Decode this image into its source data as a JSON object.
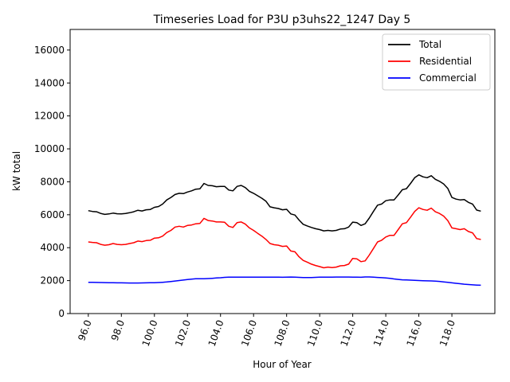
{
  "chart_data": {
    "type": "line",
    "title": "Timeseries Load for P3U p3uhs22_1247  Day 5",
    "xlabel": "Hour of Year",
    "ylabel": "kW total",
    "xlim": [
      94.9,
      120.6
    ],
    "ylim": [
      0,
      17250
    ],
    "x_ticks": [
      96.0,
      98.0,
      100.0,
      102.0,
      104.0,
      106.0,
      108.0,
      110.0,
      112.0,
      114.0,
      116.0,
      118.0
    ],
    "x_tick_labels": [
      "96.0",
      "98.0",
      "100.0",
      "102.0",
      "104.0",
      "106.0",
      "108.0",
      "110.0",
      "112.0",
      "114.0",
      "116.0",
      "118.0"
    ],
    "y_ticks": [
      0,
      2000,
      4000,
      6000,
      8000,
      10000,
      12000,
      14000,
      16000
    ],
    "y_tick_labels": [
      "0",
      "2000",
      "4000",
      "6000",
      "8000",
      "10000",
      "12000",
      "14000",
      "16000"
    ],
    "legend_position": "top-right",
    "grid": false,
    "x": [
      96.0,
      96.25,
      96.5,
      96.75,
      97.0,
      97.25,
      97.5,
      97.75,
      98.0,
      98.25,
      98.5,
      98.75,
      99.0,
      99.25,
      99.5,
      99.75,
      100.0,
      100.25,
      100.5,
      100.75,
      101.0,
      101.25,
      101.5,
      101.75,
      102.0,
      102.25,
      102.5,
      102.75,
      103.0,
      103.25,
      103.5,
      103.75,
      104.0,
      104.25,
      104.5,
      104.75,
      105.0,
      105.25,
      105.5,
      105.75,
      106.0,
      106.25,
      106.5,
      106.75,
      107.0,
      107.25,
      107.5,
      107.75,
      108.0,
      108.25,
      108.5,
      108.75,
      109.0,
      109.25,
      109.5,
      109.75,
      110.0,
      110.25,
      110.5,
      110.75,
      111.0,
      111.25,
      111.5,
      111.75,
      112.0,
      112.25,
      112.5,
      112.75,
      113.0,
      113.25,
      113.5,
      113.75,
      114.0,
      114.25,
      114.5,
      114.75,
      115.0,
      115.25,
      115.5,
      115.75,
      116.0,
      116.25,
      116.5,
      116.75,
      117.0,
      117.25,
      117.5,
      117.75,
      118.0,
      118.25,
      118.5,
      118.75,
      119.0,
      119.25,
      119.5,
      119.75
    ],
    "series": [
      {
        "name": "Total",
        "color": "#000000",
        "values": [
          6250,
          6200,
          6180,
          6080,
          6020,
          6050,
          6100,
          6060,
          6050,
          6080,
          6120,
          6180,
          6270,
          6230,
          6300,
          6320,
          6450,
          6500,
          6650,
          6900,
          7050,
          7230,
          7300,
          7280,
          7380,
          7450,
          7550,
          7570,
          7900,
          7780,
          7760,
          7700,
          7720,
          7720,
          7500,
          7450,
          7720,
          7780,
          7650,
          7420,
          7300,
          7150,
          7000,
          6820,
          6480,
          6420,
          6380,
          6300,
          6330,
          6050,
          5980,
          5680,
          5420,
          5320,
          5230,
          5150,
          5100,
          5020,
          5050,
          5020,
          5050,
          5130,
          5150,
          5250,
          5550,
          5520,
          5350,
          5450,
          5800,
          6200,
          6580,
          6650,
          6850,
          6900,
          6900,
          7200,
          7520,
          7580,
          7900,
          8250,
          8420,
          8300,
          8250,
          8370,
          8150,
          8030,
          7870,
          7600,
          7050,
          6950,
          6900,
          6920,
          6750,
          6650,
          6280,
          6220
        ]
      },
      {
        "name": "Residential",
        "color": "#ff0000",
        "values": [
          4350,
          4320,
          4300,
          4200,
          4150,
          4180,
          4250,
          4200,
          4180,
          4200,
          4250,
          4300,
          4400,
          4370,
          4430,
          4450,
          4580,
          4600,
          4700,
          4920,
          5050,
          5250,
          5300,
          5250,
          5350,
          5380,
          5450,
          5470,
          5780,
          5650,
          5620,
          5560,
          5560,
          5540,
          5300,
          5230,
          5520,
          5560,
          5430,
          5200,
          5050,
          4870,
          4700,
          4500,
          4250,
          4180,
          4150,
          4080,
          4100,
          3800,
          3750,
          3450,
          3230,
          3120,
          3000,
          2920,
          2850,
          2780,
          2820,
          2790,
          2820,
          2900,
          2920,
          3000,
          3350,
          3320,
          3150,
          3200,
          3550,
          3950,
          4350,
          4450,
          4650,
          4750,
          4750,
          5100,
          5450,
          5520,
          5850,
          6200,
          6420,
          6320,
          6270,
          6400,
          6180,
          6080,
          5920,
          5650,
          5200,
          5150,
          5100,
          5150,
          4980,
          4900,
          4550,
          4500
        ]
      },
      {
        "name": "Commercial",
        "color": "#0000ff",
        "values": [
          1900,
          1895,
          1890,
          1885,
          1880,
          1875,
          1870,
          1865,
          1865,
          1860,
          1855,
          1855,
          1855,
          1860,
          1865,
          1870,
          1875,
          1885,
          1900,
          1920,
          1945,
          1975,
          2005,
          2035,
          2065,
          2090,
          2110,
          2110,
          2115,
          2125,
          2140,
          2160,
          2175,
          2200,
          2210,
          2215,
          2215,
          2215,
          2215,
          2210,
          2210,
          2210,
          2210,
          2210,
          2210,
          2210,
          2210,
          2205,
          2215,
          2220,
          2210,
          2200,
          2190,
          2185,
          2190,
          2200,
          2210,
          2215,
          2215,
          2215,
          2220,
          2220,
          2220,
          2220,
          2215,
          2210,
          2205,
          2225,
          2225,
          2210,
          2195,
          2180,
          2160,
          2140,
          2100,
          2075,
          2050,
          2040,
          2030,
          2020,
          2005,
          1995,
          1985,
          1980,
          1970,
          1950,
          1925,
          1895,
          1865,
          1835,
          1810,
          1785,
          1765,
          1745,
          1730,
          1720
        ]
      }
    ]
  }
}
